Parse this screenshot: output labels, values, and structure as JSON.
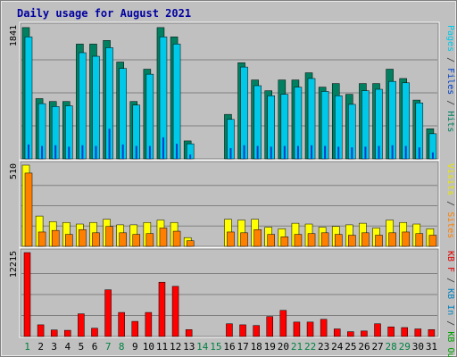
{
  "chart_data": {
    "type": "bar",
    "title": "Daily usage for August 2021",
    "categories": [
      "1",
      "2",
      "3",
      "4",
      "5",
      "6",
      "7",
      "8",
      "9",
      "10",
      "11",
      "12",
      "13",
      "14",
      "15",
      "16",
      "17",
      "18",
      "19",
      "20",
      "21",
      "22",
      "23",
      "24",
      "25",
      "26",
      "27",
      "28",
      "29",
      "30",
      "31"
    ],
    "weekend_days": [
      "1",
      "7",
      "8",
      "14",
      "15",
      "21",
      "22",
      "28",
      "29"
    ],
    "panels": [
      {
        "id": "top",
        "ymax_label": "1841",
        "ymax": 1841,
        "legend": [
          {
            "text": "Pages",
            "color": "#00c8e8"
          },
          {
            "text": " / ",
            "color": "#333333"
          },
          {
            "text": "Files",
            "color": "#0040c8"
          },
          {
            "text": " / ",
            "color": "#333333"
          },
          {
            "text": "Hits",
            "color": "#008060"
          }
        ],
        "series": [
          {
            "name": "Hits",
            "color": "#008060",
            "values": [
              1830,
              840,
              800,
              800,
              1600,
              1600,
              1650,
              1350,
              800,
              1250,
              1830,
              1700,
              250,
              0,
              0,
              620,
              1340,
              1100,
              950,
              1100,
              1100,
              1200,
              1000,
              1050,
              900,
              1050,
              1050,
              1250,
              1120,
              820,
              420
            ]
          },
          {
            "name": "Files",
            "color": "#0040c8",
            "values": [
              200,
              180,
              190,
              170,
              190,
              180,
              420,
              200,
              180,
              180,
              300,
              210,
              60,
              0,
              0,
              150,
              190,
              180,
              170,
              180,
              180,
              190,
              180,
              170,
              160,
              170,
              180,
              190,
              180,
              160,
              90
            ]
          },
          {
            "name": "Pages",
            "color": "#00c8e8",
            "values": [
              1700,
              770,
              730,
              740,
              1480,
              1430,
              1550,
              1260,
              750,
              1180,
              1700,
              1600,
              210,
              0,
              0,
              550,
              1280,
              1020,
              880,
              900,
              1000,
              1120,
              940,
              880,
              760,
              950,
              970,
              1080,
              1060,
              780,
              350
            ]
          }
        ]
      },
      {
        "id": "middle",
        "ymax_label": "510",
        "ymax": 510,
        "legend": [
          {
            "text": "Visits",
            "color": "#e8e800"
          },
          {
            "text": " / ",
            "color": "#333333"
          },
          {
            "text": "Sites",
            "color": "#ff8000"
          }
        ],
        "series": [
          {
            "name": "Visits",
            "color": "#ffff00",
            "values": [
              510,
              190,
              155,
              150,
              140,
              150,
              170,
              135,
              135,
              150,
              165,
              150,
              55,
              0,
              0,
              170,
              165,
              170,
              120,
              110,
              145,
              140,
              120,
              125,
              135,
              145,
              115,
              165,
              150,
              140,
              110
            ]
          },
          {
            "name": "Sites",
            "color": "#ff8000",
            "values": [
              460,
              90,
              100,
              75,
              105,
              85,
              125,
              85,
              75,
              80,
              115,
              95,
              35,
              0,
              0,
              90,
              85,
              105,
              75,
              60,
              75,
              80,
              85,
              75,
              70,
              85,
              70,
              85,
              90,
              80,
              70
            ]
          }
        ]
      },
      {
        "id": "bottom",
        "ymax_label": "12215",
        "ymax": 12215,
        "legend": [
          {
            "text": "KB F",
            "color": "#e00000"
          },
          {
            "text": " / ",
            "color": "#333333"
          },
          {
            "text": "KB In",
            "color": "#0080c0"
          },
          {
            "text": " / ",
            "color": "#333333"
          },
          {
            "text": "KB Out",
            "color": "#00a000"
          }
        ],
        "series": [
          {
            "name": "KB F",
            "color": "#ff0000",
            "values": [
              12215,
              1700,
              950,
              900,
              3300,
              1200,
              6800,
              3500,
              2200,
              3500,
              7900,
              7300,
              1000,
              0,
              0,
              1850,
              1700,
              1600,
              2900,
              3800,
              2100,
              2100,
              2500,
              1100,
              700,
              800,
              1850,
              1400,
              1300,
              1100,
              1000
            ]
          }
        ]
      }
    ]
  }
}
